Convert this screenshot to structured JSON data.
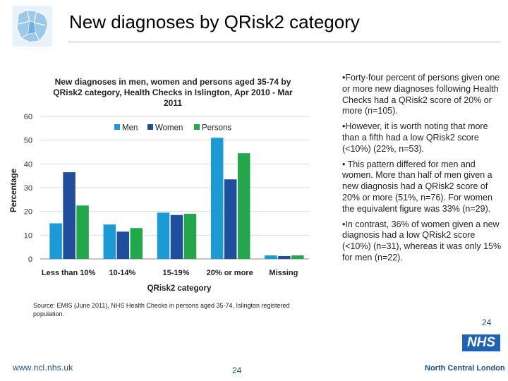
{
  "slide": {
    "title": "New diagnoses by QRisk2 category",
    "logo_icon": "london-boroughs-map-icon",
    "page_small": "24",
    "page_bottom": "24",
    "website": "www.ncl.nhs.uk",
    "nhs_logo": "NHS",
    "org_name": "North Central London",
    "source": "Source: EMIS (June 2011), NHS Health Checks in persons aged 35-74, Islington registered population.",
    "colors": {
      "title": "#000000",
      "brand_blue": "#1e4d8c",
      "nhs_blue": "#1e63b4"
    }
  },
  "bullets": [
    "•Forty-four percent of persons given one or more new diagnoses following Health Checks had a QRisk2 score of 20% or more (n=105).",
    "•However, it is worth noting that more than a fifth had a low QRisk2 score (<10%)  (22%, n=53).",
    "• This pattern differed for men and women. More than half of men given a new diagnosis had a QRisk2 score of 20% or more (51%, n=76). For women the equivalent figure was 33% (n=29).",
    "•In contrast, 36% of women given a new diagnosis had a low QRisk2 score (<10%) (n=31), whereas it was only 15% for men (n=22)."
  ],
  "chart_data": {
    "type": "bar",
    "title_lines": [
      "New diagnoses in men, women and persons aged 35-74 by",
      "QRisk2 category, Health Checks in Islington, Apr 2010 - Mar",
      "2011"
    ],
    "xlabel": "QRisk2 category",
    "ylabel": "Percentage",
    "ylim": [
      0,
      60
    ],
    "yticks": [
      "0",
      "10",
      "20",
      "30",
      "40",
      "50",
      "60"
    ],
    "categories": [
      "Less than 10%",
      "10-14%",
      "15-19%",
      "20% or more",
      "Missing"
    ],
    "legend_position": "top",
    "series": [
      {
        "name": "Men",
        "color": "#1b9ad6",
        "values": [
          15,
          14.5,
          19.5,
          51,
          1.5
        ]
      },
      {
        "name": "Women",
        "color": "#1f4e9c",
        "values": [
          36.5,
          11.5,
          18.5,
          33.5,
          1.2
        ]
      },
      {
        "name": "Persons",
        "color": "#22a84a",
        "values": [
          22.5,
          13,
          19,
          44.5,
          1.5
        ]
      }
    ]
  }
}
